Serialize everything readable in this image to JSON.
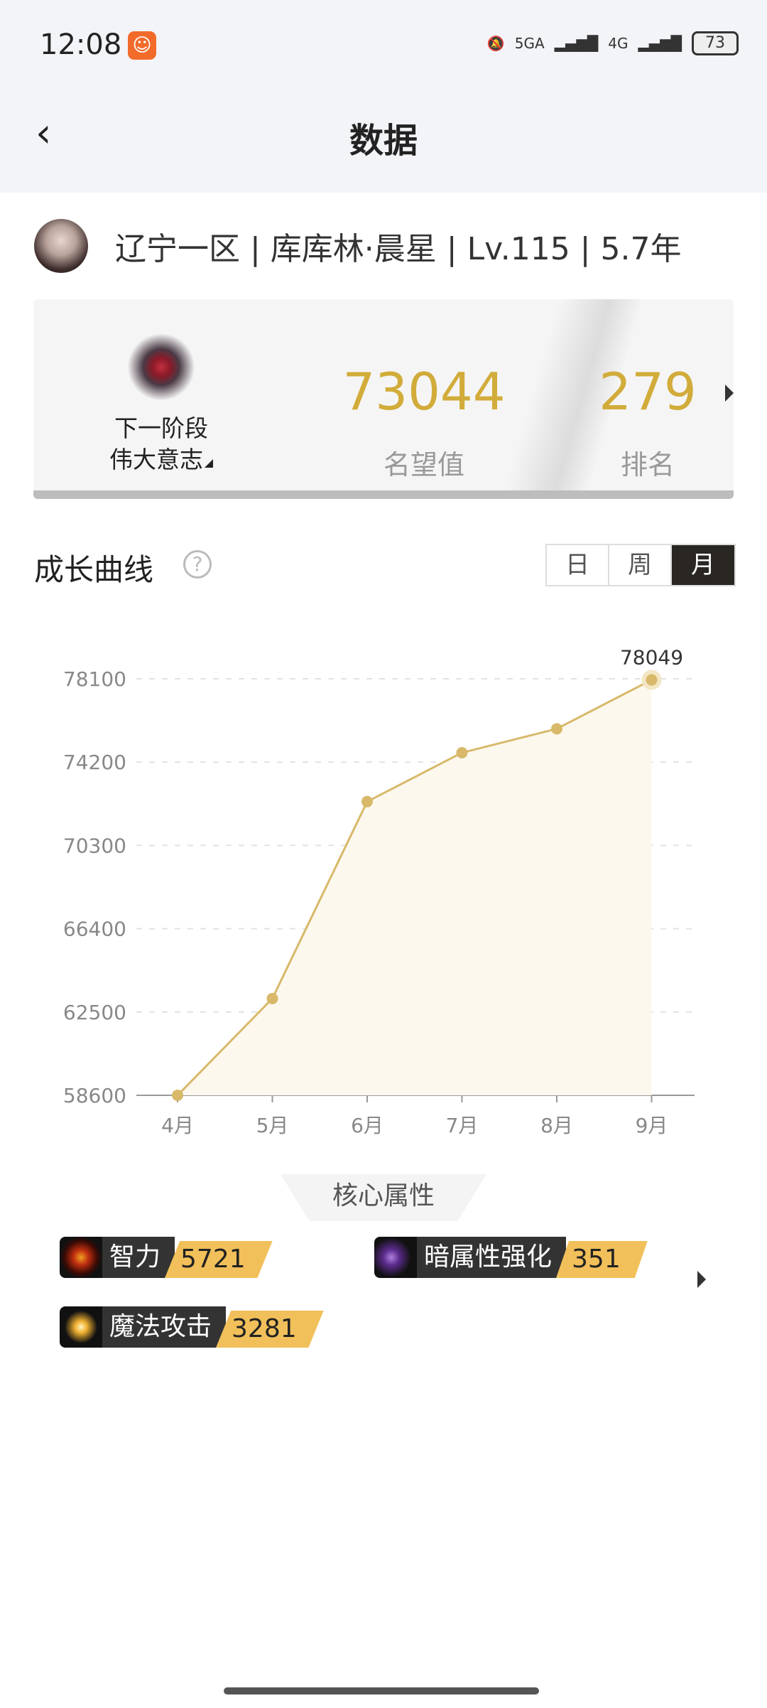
{
  "status": {
    "time": "12:08",
    "network1": "5GA",
    "network2": "4G",
    "battery": "73"
  },
  "header": {
    "title": "数据"
  },
  "profile": {
    "text": "辽宁一区 | 库库林·晨星 | Lv.115 | 5.7年"
  },
  "card": {
    "next_stage_label": "下一阶段",
    "next_stage_name": "伟大意志",
    "fame_value": "73044",
    "fame_label": "名望值",
    "rank_value": "279",
    "rank_label": "排名"
  },
  "growth": {
    "title": "成长曲线",
    "help": "?",
    "tabs": [
      "日",
      "周",
      "月"
    ],
    "active_tab": "月"
  },
  "chart_data": {
    "type": "area",
    "x": [
      "4月",
      "5月",
      "6月",
      "7月",
      "8月",
      "9月"
    ],
    "values": [
      58600,
      63130,
      72350,
      74640,
      75760,
      78049
    ],
    "y_ticks": [
      58600,
      62500,
      66400,
      70300,
      74200,
      78100
    ],
    "ylim": [
      58600,
      78100
    ],
    "grid": true,
    "annotation": "78049",
    "color": "#d8b96a"
  },
  "core": {
    "title": "核心属性",
    "attrs": [
      {
        "name": "智力",
        "value": "5721",
        "icon": "eye-icon"
      },
      {
        "name": "暗属性强化",
        "value": "351",
        "icon": "dark-scythe-icon"
      },
      {
        "name": "魔法攻击",
        "value": "3281",
        "icon": "sparkle-icon"
      }
    ]
  },
  "colors": {
    "accent": "#d2ac3a",
    "value_tag": "#f2c05a"
  }
}
